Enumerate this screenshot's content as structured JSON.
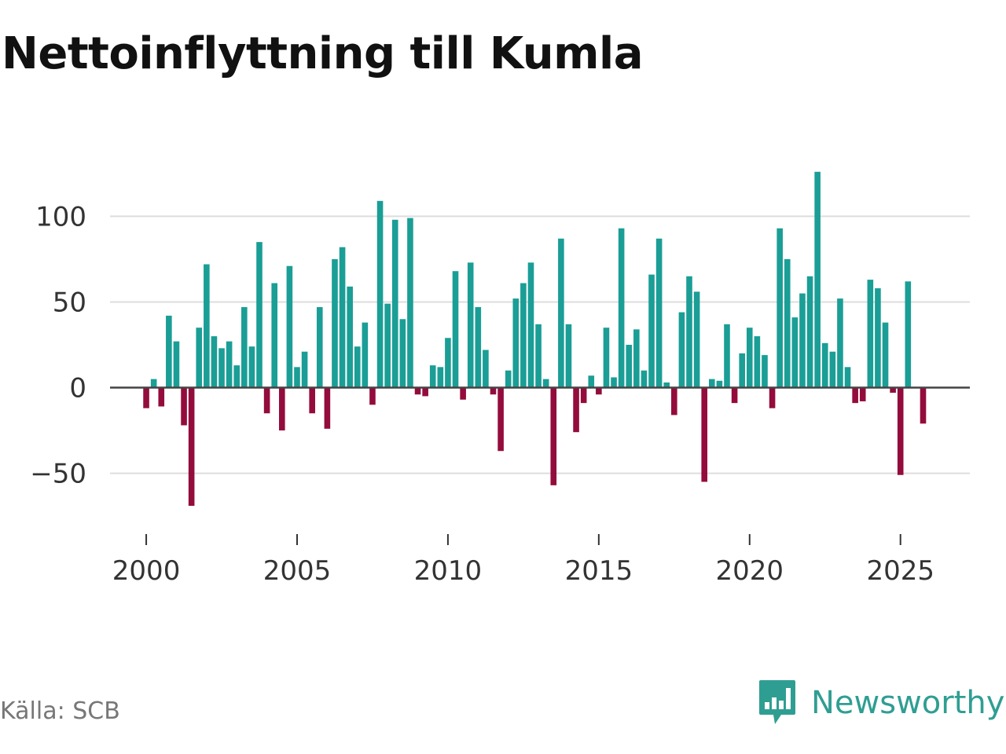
{
  "chart_data": {
    "type": "bar",
    "title": "Nettoinflyttning till Kumla",
    "xlabel": "",
    "ylabel": "",
    "ylim": [
      -80,
      130
    ],
    "xlim": [
      1998.8,
      2027.3
    ],
    "yticks": [
      -50,
      0,
      50,
      100
    ],
    "ytick_labels": [
      "−50",
      "0",
      "50",
      "100"
    ],
    "xticks": [
      2000,
      2005,
      2010,
      2015,
      2020,
      2025
    ],
    "xtick_labels": [
      "2000",
      "2005",
      "2010",
      "2015",
      "2020",
      "2025"
    ],
    "grid": true,
    "colors": {
      "positive": "#1a9e96",
      "negative": "#930c3c",
      "grid": "#dddddd",
      "zero": "#444444"
    },
    "start_period": 2000.0,
    "period_step": 0.25,
    "series": [
      {
        "name": "Nettoinflyttning",
        "values": [
          -12,
          5,
          -11,
          42,
          27,
          -22,
          -69,
          35,
          72,
          30,
          23,
          27,
          13,
          47,
          24,
          85,
          -15,
          61,
          -25,
          71,
          12,
          21,
          -15,
          47,
          -24,
          75,
          82,
          59,
          24,
          38,
          -10,
          109,
          49,
          98,
          40,
          99,
          -4,
          -5,
          13,
          12,
          29,
          68,
          -7,
          73,
          47,
          22,
          -4,
          -37,
          10,
          52,
          61,
          73,
          37,
          5,
          -57,
          87,
          37,
          -26,
          -9,
          7,
          -4,
          35,
          6,
          93,
          25,
          34,
          10,
          66,
          87,
          3,
          -16,
          44,
          65,
          56,
          -55,
          5,
          4,
          37,
          -9,
          20,
          35,
          30,
          19,
          -12,
          93,
          75,
          41,
          55,
          65,
          126,
          26,
          21,
          52,
          12,
          -9,
          -8,
          63,
          58,
          38,
          -3,
          -51,
          62,
          0,
          -21
        ]
      }
    ],
    "source": "Källa: SCB"
  },
  "brand": {
    "name": "Newsworthy",
    "color": "#2f9e92",
    "icon": "newsworthy-logo-icon"
  }
}
